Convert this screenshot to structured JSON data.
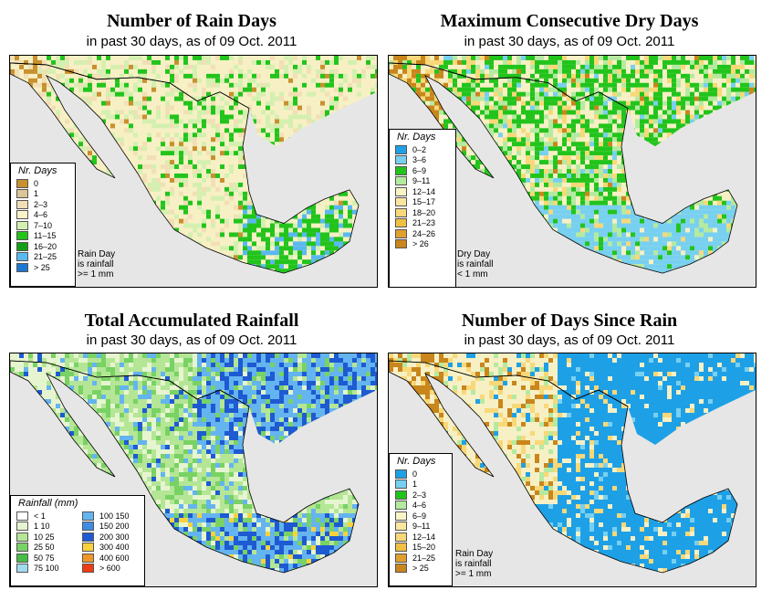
{
  "subtitle": "in past 30 days, as of  09 Oct. 2011",
  "land_color": "#f7f0c5",
  "sea_color": "#e6e6e6",
  "panels": {
    "rain_days": {
      "title": "Number of Rain Days",
      "legend_title": "Nr. Days",
      "note": [
        "Rain Day",
        "is rainfall",
        ">= 1 mm"
      ],
      "classes": [
        {
          "label": "0",
          "color": "#c8902e"
        },
        {
          "label": "1",
          "color": "#dcc596"
        },
        {
          "label": "2–3",
          "color": "#f2dfb6"
        },
        {
          "label": "4–6",
          "color": "#f8f3c8"
        },
        {
          "label": "7–10",
          "color": "#d4f0b0"
        },
        {
          "label": "11–15",
          "color": "#22c41c"
        },
        {
          "label": "16–20",
          "color": "#14a014"
        },
        {
          "label": "21–25",
          "color": "#5ab8f0"
        },
        {
          "label": "> 25",
          "color": "#1e78d2"
        }
      ]
    },
    "dry_days": {
      "title": "Maximum Consecutive Dry Days",
      "legend_title": "Nr. Days",
      "note": [
        "Dry Day",
        "is rainfall",
        "< 1 mm"
      ],
      "classes": [
        {
          "label": "0–2",
          "color": "#1ea0e6"
        },
        {
          "label": "3–6",
          "color": "#78d0f0"
        },
        {
          "label": "6–9",
          "color": "#22c41c"
        },
        {
          "label": "9–11",
          "color": "#b4eaa0"
        },
        {
          "label": "12–14",
          "color": "#f8f4c8"
        },
        {
          "label": "15–17",
          "color": "#fae6a0"
        },
        {
          "label": "18–20",
          "color": "#f8d878"
        },
        {
          "label": "21–23",
          "color": "#f2c040"
        },
        {
          "label": "24–26",
          "color": "#e0a030"
        },
        {
          "label": "> 26",
          "color": "#c8861c"
        }
      ]
    },
    "rainfall": {
      "title": "Total Accumulated Rainfall",
      "legend_title": "Rainfall (mm)",
      "classes_left": [
        {
          "label": "< 1",
          "color": "#ffffff"
        },
        {
          "label": "1    10",
          "color": "#e6f5d0"
        },
        {
          "label": "10    25",
          "color": "#b4e696"
        },
        {
          "label": "25    50",
          "color": "#78d264"
        },
        {
          "label": "50    75",
          "color": "#46be46"
        },
        {
          "label": "75   100",
          "color": "#a0dcf0"
        }
      ],
      "classes_right": [
        {
          "label": "100   150",
          "color": "#64b4f0"
        },
        {
          "label": "150   200",
          "color": "#3c8ce6"
        },
        {
          "label": "200   300",
          "color": "#1e5ad2"
        },
        {
          "label": "300   400",
          "color": "#f8d23c"
        },
        {
          "label": "400   600",
          "color": "#f09628"
        },
        {
          "label": "> 600",
          "color": "#f03c14"
        }
      ]
    },
    "since_rain": {
      "title": "Number of Days Since Rain",
      "legend_title": "Nr. Days",
      "note": [
        "Rain Day",
        "is rainfall",
        ">= 1 mm"
      ],
      "classes": [
        {
          "label": "0",
          "color": "#1ea0e6"
        },
        {
          "label": "1",
          "color": "#78d0f0"
        },
        {
          "label": "2–3",
          "color": "#22c41c"
        },
        {
          "label": "4–6",
          "color": "#b4eaa0"
        },
        {
          "label": "6–9",
          "color": "#f8f4c8"
        },
        {
          "label": "9–11",
          "color": "#fae6a0"
        },
        {
          "label": "12–14",
          "color": "#f8d878"
        },
        {
          "label": "15–20",
          "color": "#f2c040"
        },
        {
          "label": "21–25",
          "color": "#e0a030"
        },
        {
          "label": "> 25",
          "color": "#c8861c"
        }
      ]
    }
  }
}
